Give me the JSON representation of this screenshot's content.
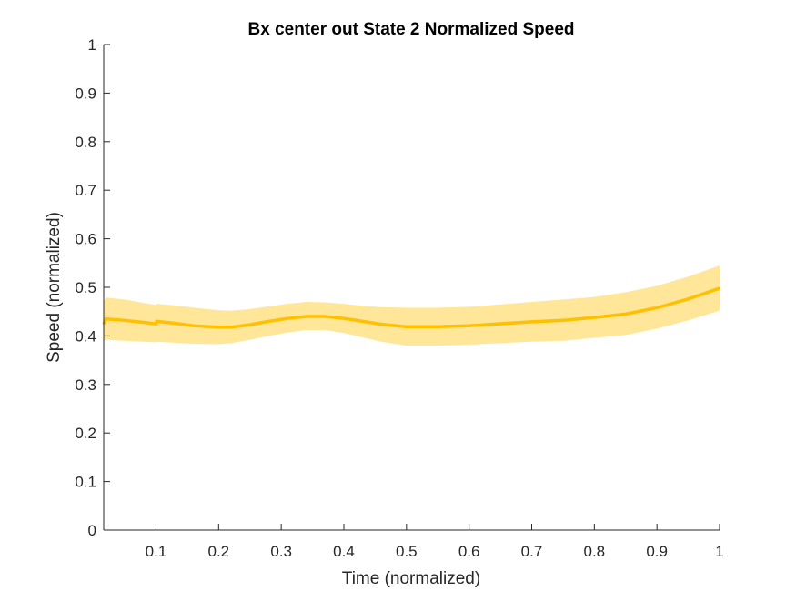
{
  "chart_data": {
    "type": "line",
    "title": "Bx  center out State 2 Normalized Speed",
    "xlabel": "Time (normalized)",
    "ylabel": "Speed (normalized)",
    "xlim": [
      0.0165,
      1.0
    ],
    "ylim": [
      0,
      1
    ],
    "xticks": [
      0.1,
      0.2,
      0.3,
      0.4,
      0.5,
      0.6,
      0.7,
      0.8,
      0.9,
      1
    ],
    "xtick_labels": [
      "0.1",
      "0.2",
      "0.3",
      "0.4",
      "0.5",
      "0.6",
      "0.7",
      "0.8",
      "0.9",
      "1"
    ],
    "yticks": [
      0,
      0.1,
      0.2,
      0.3,
      0.4,
      0.5,
      0.6,
      0.7,
      0.8,
      0.9,
      1
    ],
    "ytick_labels": [
      "0",
      "0.1",
      "0.2",
      "0.3",
      "0.4",
      "0.5",
      "0.6",
      "0.7",
      "0.8",
      "0.9",
      "1"
    ],
    "grid": false,
    "legend": "none",
    "line_color": "#ffc000",
    "band_color": "#ffe699",
    "series": [
      {
        "x": [
          0.0165,
          0.02,
          0.05,
          0.08,
          0.099,
          0.1,
          0.101,
          0.13,
          0.16,
          0.2,
          0.22,
          0.25,
          0.28,
          0.31,
          0.34,
          0.37,
          0.4,
          0.43,
          0.46,
          0.5,
          0.55,
          0.6,
          0.65,
          0.7,
          0.75,
          0.8,
          0.85,
          0.9,
          0.95,
          1.0
        ],
        "y": [
          0.425,
          0.435,
          0.432,
          0.428,
          0.425,
          0.424,
          0.43,
          0.426,
          0.421,
          0.418,
          0.418,
          0.423,
          0.43,
          0.436,
          0.44,
          0.44,
          0.436,
          0.43,
          0.424,
          0.419,
          0.419,
          0.421,
          0.425,
          0.429,
          0.432,
          0.438,
          0.445,
          0.458,
          0.476,
          0.498
        ],
        "lower": [
          0.39,
          0.392,
          0.39,
          0.388,
          0.387,
          0.386,
          0.388,
          0.386,
          0.384,
          0.383,
          0.385,
          0.392,
          0.4,
          0.407,
          0.412,
          0.412,
          0.406,
          0.397,
          0.388,
          0.38,
          0.38,
          0.382,
          0.385,
          0.388,
          0.39,
          0.396,
          0.402,
          0.415,
          0.432,
          0.452
        ],
        "upper": [
          0.47,
          0.479,
          0.475,
          0.468,
          0.464,
          0.463,
          0.466,
          0.463,
          0.458,
          0.453,
          0.452,
          0.455,
          0.461,
          0.466,
          0.47,
          0.469,
          0.466,
          0.462,
          0.459,
          0.458,
          0.458,
          0.46,
          0.465,
          0.47,
          0.475,
          0.48,
          0.49,
          0.503,
          0.522,
          0.545
        ]
      }
    ]
  }
}
